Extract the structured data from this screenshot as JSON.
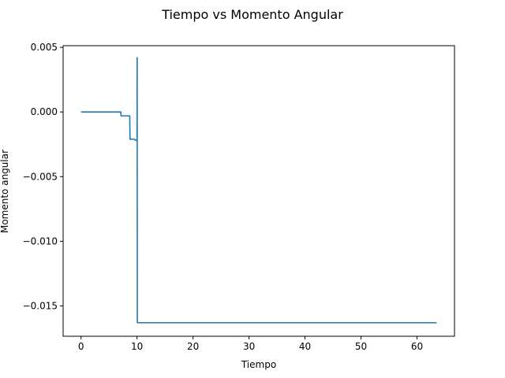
{
  "chart_data": {
    "type": "line",
    "title": "Tiempo vs Momento Angular",
    "xlabel": "Tiempo",
    "ylabel": "Momento angular",
    "xlim": [
      -3.2,
      66.7
    ],
    "ylim": [
      -0.01735,
      0.00513
    ],
    "xticks": [
      0,
      10,
      20,
      30,
      40,
      50,
      60
    ],
    "xtick_labels": [
      "0",
      "10",
      "20",
      "30",
      "40",
      "50",
      "60"
    ],
    "yticks": [
      0.005,
      0.0,
      -0.005,
      -0.01,
      -0.015
    ],
    "ytick_labels": [
      "0.005",
      "0.000",
      "−0.005",
      "−0.010",
      "−0.015"
    ],
    "grid": false,
    "line_color": "#1f77b4",
    "series": [
      {
        "x": [
          0,
          7.1,
          7.15,
          8.7,
          8.75,
          9.5,
          9.8,
          10.0,
          10.02,
          10.05,
          10.08,
          11,
          63.5
        ],
        "y": [
          0.0,
          0.0,
          -0.0003,
          -0.0003,
          -0.0021,
          -0.0021,
          -0.0022,
          -0.0022,
          0.0042,
          -0.0163,
          -0.0163,
          -0.0163,
          -0.0163
        ]
      }
    ]
  }
}
